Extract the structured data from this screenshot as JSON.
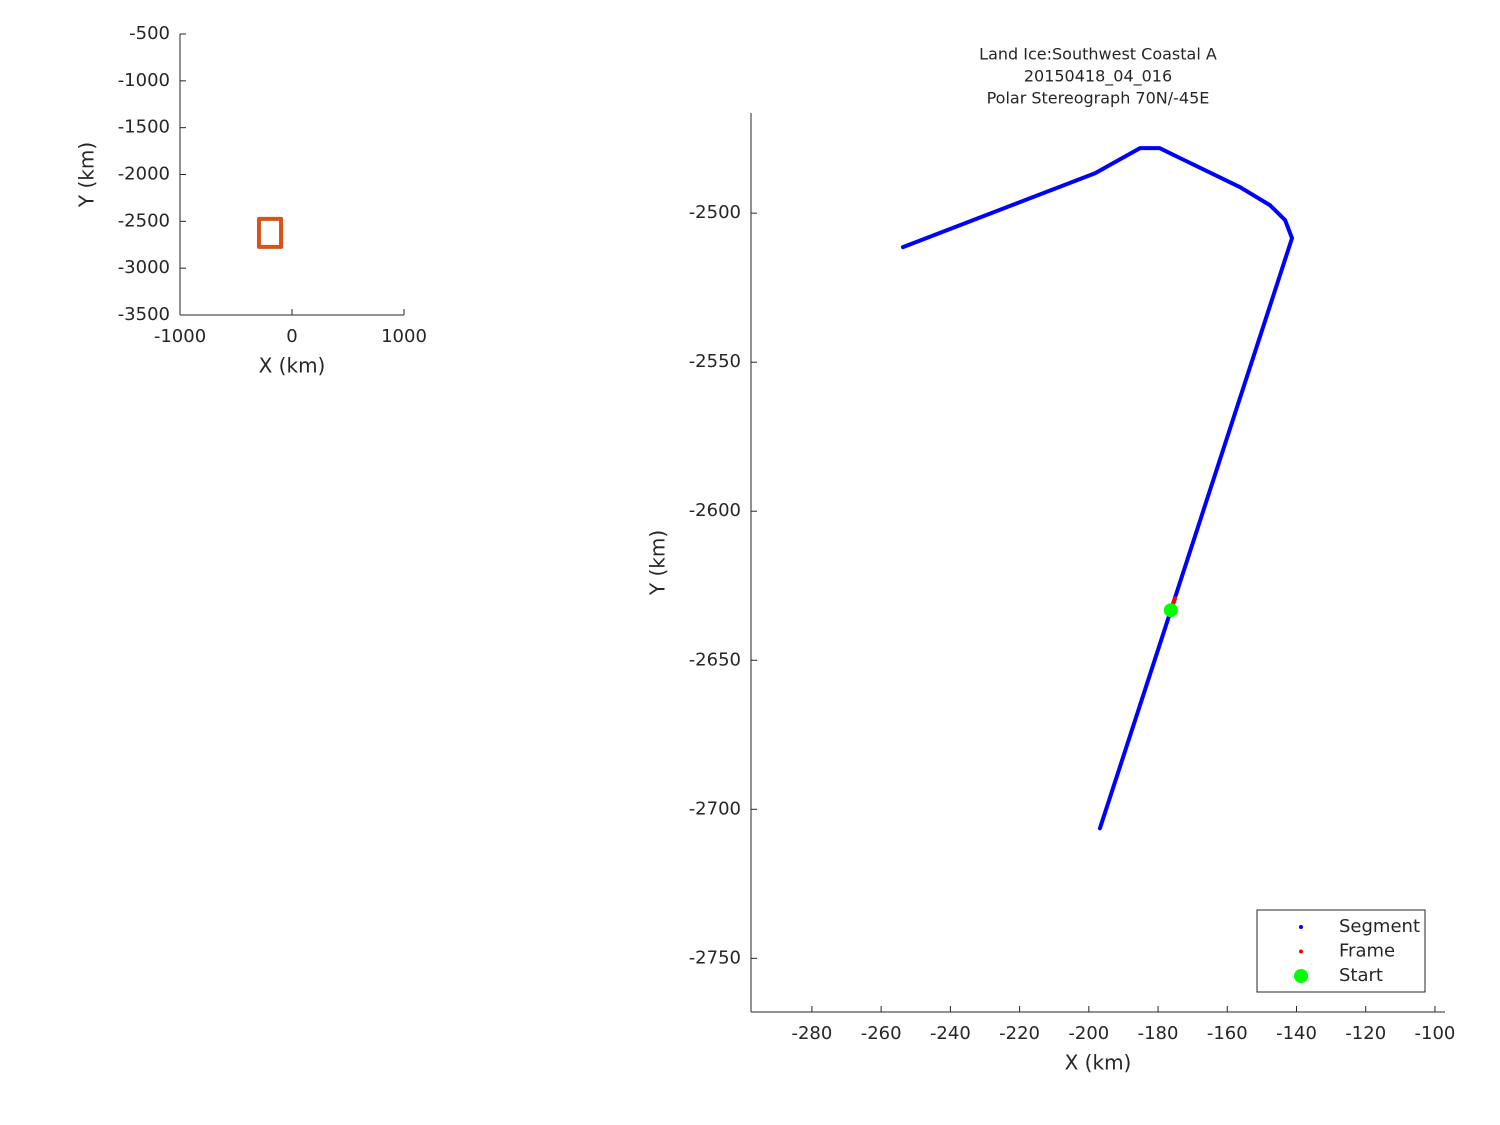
{
  "chart_data": [
    {
      "type": "line",
      "xlabel": "X (km)",
      "ylabel": "Y (km)",
      "xlim": [
        -1000,
        1000
      ],
      "ylim": [
        -3500,
        -500
      ],
      "xticks": [
        -1000,
        0,
        1000
      ],
      "yticks": [
        -3500,
        -3000,
        -2500,
        -2000,
        -1500,
        -1000,
        -500
      ],
      "series": [
        {
          "color": "#d95319",
          "x": [
            -295,
            -98,
            -98,
            -295,
            -295
          ],
          "y": [
            -2474,
            -2474,
            -2773,
            -2773,
            -2474
          ]
        }
      ]
    },
    {
      "type": "line",
      "title": [
        "Land Ice:Southwest Coastal A",
        "20150418_04_016",
        "Polar Stereograph 70N/-45E"
      ],
      "xlabel": "X (km)",
      "ylabel": "Y (km)",
      "xlim": [
        -297.6,
        -97.1
      ],
      "ylim": [
        -2768,
        -2466.4
      ],
      "xticks": [
        -280,
        -260,
        -240,
        -220,
        -200,
        -180,
        -160,
        -140,
        -120,
        -100
      ],
      "yticks": [
        -2750,
        -2700,
        -2650,
        -2600,
        -2550,
        -2500
      ],
      "legend": "southeast",
      "series": [
        {
          "name": "Segment",
          "color": "#0000ff",
          "x": [
            -253.7,
            -198.2,
            -185.2,
            -179.5,
            -173.7,
            -156.3,
            -147.7,
            -143.3,
            -141.3,
            -196.8
          ],
          "y": [
            -2511.4,
            -2486.6,
            -2478.2,
            -2478.2,
            -2481.5,
            -2491.3,
            -2497.3,
            -2502.3,
            -2508.4,
            -2706.4
          ]
        },
        {
          "name": "Frame",
          "color": "#ff0000",
          "x": [
            -175.1,
            -176.0
          ],
          "y": [
            -2629.2,
            -2632.5
          ]
        },
        {
          "name": "Start",
          "color": "#00ff00",
          "x": [
            -176.3
          ],
          "y": [
            -2633.2
          ]
        }
      ]
    }
  ]
}
